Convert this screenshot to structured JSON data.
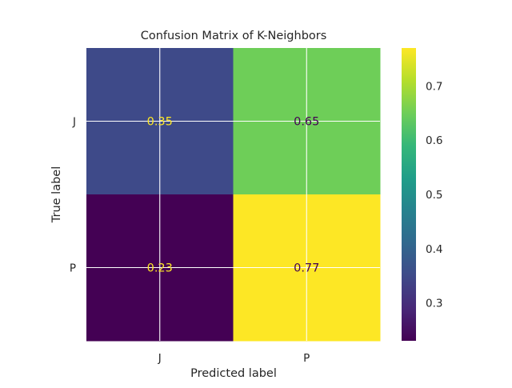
{
  "chart_data": {
    "type": "heatmap",
    "title": "Confusion Matrix of K-Neighbors",
    "xlabel": "Predicted label",
    "ylabel": "True label",
    "x_categories": [
      "J",
      "P"
    ],
    "y_categories": [
      "J",
      "P"
    ],
    "values": [
      [
        0.35,
        0.65
      ],
      [
        0.23,
        0.77
      ]
    ],
    "value_labels": [
      [
        "0.35",
        "0.65"
      ],
      [
        "0.23",
        "0.77"
      ]
    ],
    "colormap": "viridis",
    "colorbar": {
      "range": [
        0.23,
        0.77
      ],
      "ticks": [
        0.3,
        0.4,
        0.5,
        0.6,
        0.7
      ],
      "tick_labels": [
        "0.3",
        "0.4",
        "0.5",
        "0.6",
        "0.7"
      ]
    },
    "grid": true,
    "annotation_colors": {
      "on_dark": "#fde725",
      "on_light": "#440154"
    }
  },
  "colors": {
    "text": "#262626",
    "grid": "#ffffff",
    "background": "#ffffff"
  }
}
